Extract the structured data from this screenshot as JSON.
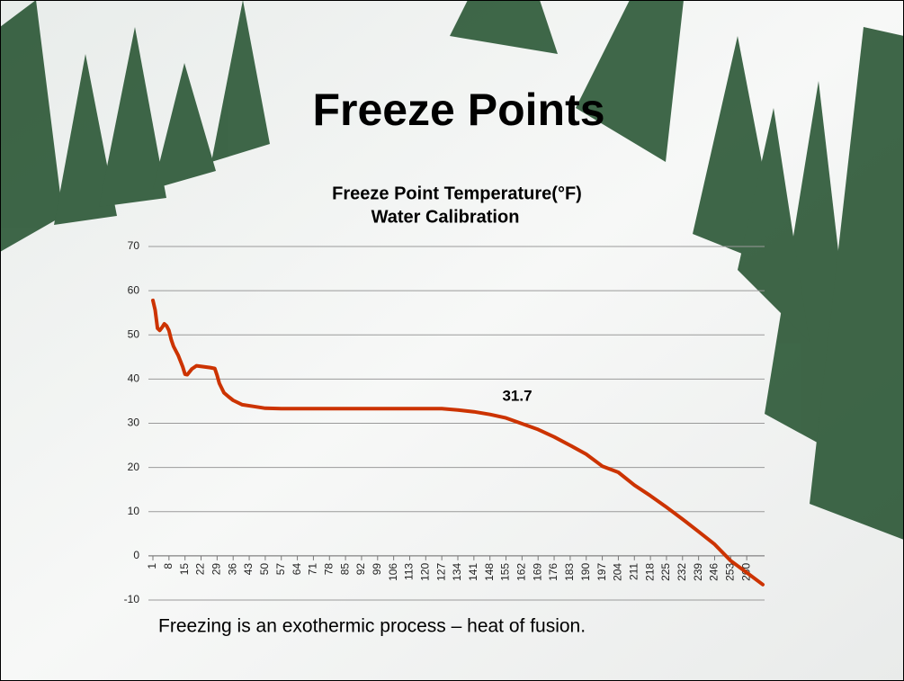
{
  "slide_title": "Freeze Points",
  "caption": "Freezing is an exothermic process – heat of fusion.",
  "chart_data": {
    "type": "line",
    "title": "Freeze Point Temperature(°F)",
    "subtitle": "Water Calibration",
    "x": [
      1,
      2,
      3,
      4,
      5,
      6,
      7,
      8,
      9,
      10,
      12,
      14,
      15,
      16,
      18,
      20,
      23,
      26,
      28,
      29,
      30,
      32,
      34,
      36,
      40,
      45,
      50,
      57,
      64,
      71,
      78,
      85,
      92,
      99,
      106,
      113,
      120,
      127,
      134,
      141,
      148,
      155,
      162,
      169,
      176,
      183,
      190,
      197,
      204,
      211,
      218,
      225,
      232,
      239,
      246,
      253,
      260,
      267
    ],
    "values": [
      57.8,
      55.6,
      51.5,
      51,
      51.7,
      52.5,
      52,
      51,
      48.9,
      47.4,
      45.4,
      42.8,
      41.1,
      41,
      42.3,
      43,
      42.8,
      42.6,
      42.4,
      40.8,
      39,
      36.9,
      36,
      35.2,
      34.2,
      33.8,
      33.4,
      33.3,
      33.3,
      33.3,
      33.3,
      33.3,
      33.3,
      33.3,
      33.3,
      33.3,
      33.3,
      33.3,
      33,
      32.6,
      32,
      31.2,
      29.9,
      28.6,
      26.9,
      25,
      23,
      20.3,
      18.9,
      16,
      13.6,
      11,
      8.3,
      5.5,
      2.6,
      -1.1,
      -3.8,
      -6.5
    ],
    "color": "#cc3300",
    "xlim": [
      1,
      267
    ],
    "xticks": [
      1,
      8,
      15,
      22,
      29,
      36,
      43,
      50,
      57,
      64,
      71,
      78,
      85,
      92,
      99,
      106,
      113,
      120,
      127,
      134,
      141,
      148,
      155,
      162,
      169,
      176,
      183,
      190,
      197,
      204,
      211,
      218,
      225,
      232,
      239,
      246,
      253,
      260
    ],
    "ylim": [
      -10,
      70
    ],
    "yticks": [
      -10,
      0,
      10,
      20,
      30,
      40,
      50,
      60,
      70
    ],
    "grid": true,
    "annotations": [
      {
        "text": "31.7"
      }
    ]
  }
}
